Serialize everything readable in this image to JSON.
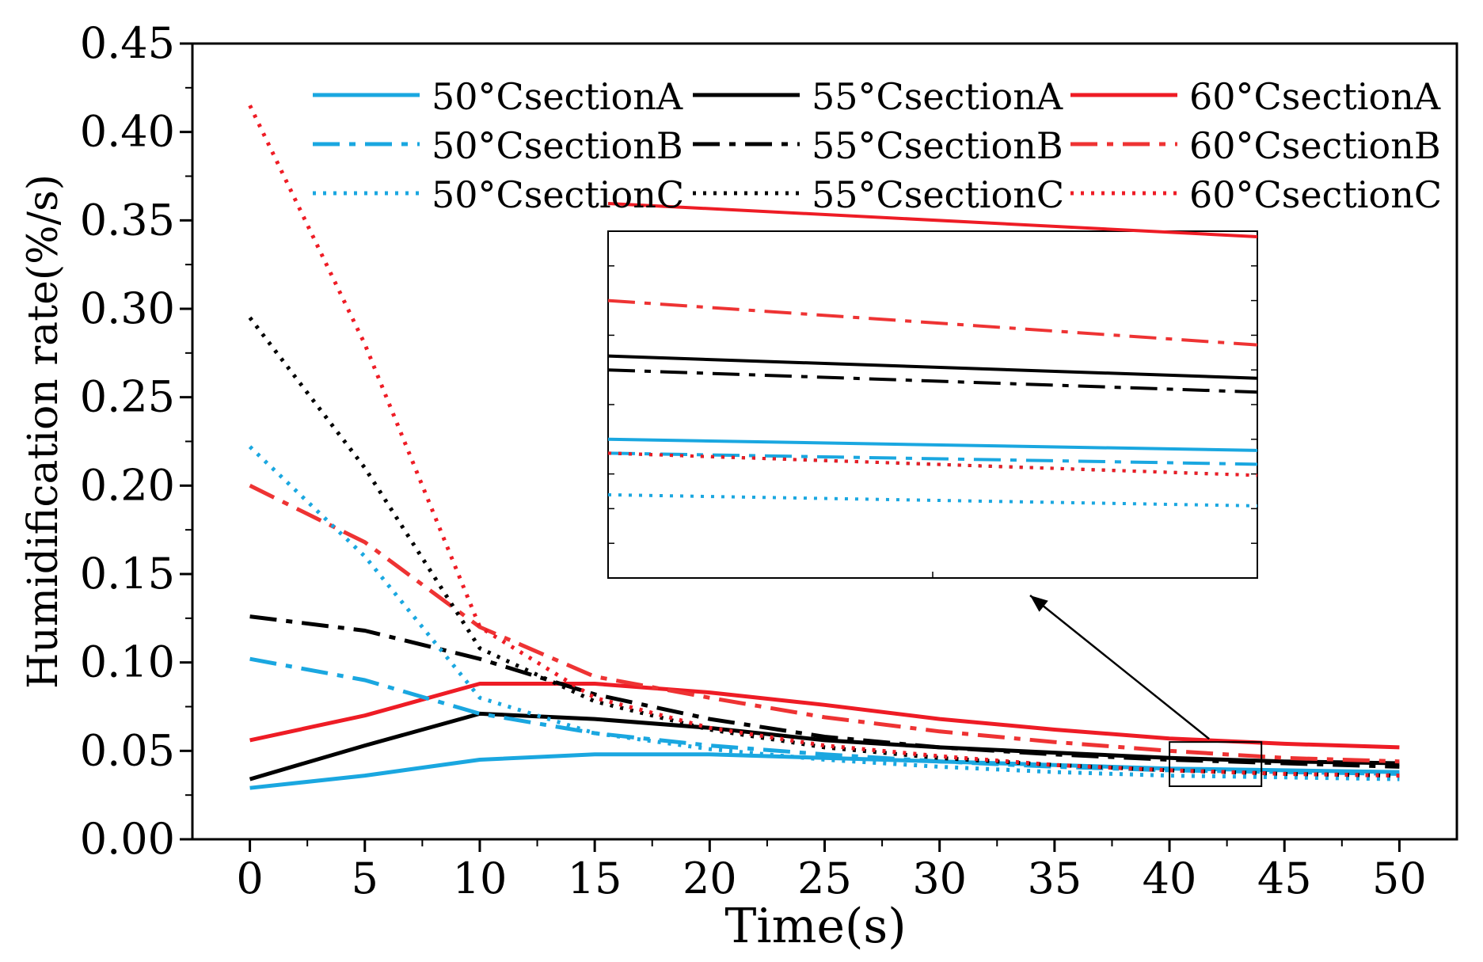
{
  "chart_data": {
    "type": "line",
    "title": "",
    "xlabel": "Time(s)",
    "ylabel": "Humidification rate(%/s)",
    "xlim": [
      -2.5,
      52.5
    ],
    "ylim": [
      0,
      0.45
    ],
    "xticks": [
      0,
      5,
      10,
      15,
      20,
      25,
      30,
      35,
      40,
      45,
      50
    ],
    "xtick_labels": [
      "0",
      "5",
      "10",
      "15",
      "20",
      "25",
      "30",
      "35",
      "40",
      "45",
      "50"
    ],
    "yticks": [
      0,
      0.05,
      0.1,
      0.15,
      0.2,
      0.25,
      0.3,
      0.35,
      0.4,
      0.45
    ],
    "ytick_labels": [
      "0.00",
      "0.05",
      "0.10",
      "0.15",
      "0.20",
      "0.25",
      "0.30",
      "0.35",
      "0.40",
      "0.45"
    ],
    "grid": false,
    "legend_position": "top",
    "x": [
      0,
      5,
      10,
      15,
      20,
      25,
      30,
      35,
      40,
      45,
      50
    ],
    "series": [
      {
        "name": "50°CsectionA",
        "color": "#1aa7e0",
        "style": "solid",
        "values": [
          0.029,
          0.036,
          0.045,
          0.048,
          0.048,
          0.046,
          0.044,
          0.042,
          0.04,
          0.039,
          0.038
        ]
      },
      {
        "name": "55°CsectionA",
        "color": "#000000",
        "style": "solid",
        "values": [
          0.034,
          0.053,
          0.071,
          0.068,
          0.063,
          0.056,
          0.052,
          0.049,
          0.046,
          0.044,
          0.043
        ]
      },
      {
        "name": "60°CsectionA",
        "color": "#ee1c25",
        "style": "solid",
        "values": [
          0.056,
          0.07,
          0.088,
          0.088,
          0.083,
          0.076,
          0.068,
          0.062,
          0.057,
          0.054,
          0.052
        ]
      },
      {
        "name": "50°CsectionB",
        "color": "#1aa7e0",
        "style": "dashdot",
        "values": [
          0.102,
          0.09,
          0.071,
          0.06,
          0.053,
          0.048,
          0.044,
          0.041,
          0.039,
          0.038,
          0.037
        ]
      },
      {
        "name": "55°CsectionB",
        "color": "#000000",
        "style": "dashdot",
        "values": [
          0.126,
          0.118,
          0.102,
          0.082,
          0.068,
          0.058,
          0.052,
          0.048,
          0.045,
          0.043,
          0.041
        ]
      },
      {
        "name": "60°CsectionB",
        "color": "#ee3333",
        "style": "dashdot",
        "values": [
          0.2,
          0.168,
          0.12,
          0.092,
          0.08,
          0.069,
          0.061,
          0.055,
          0.05,
          0.046,
          0.044
        ]
      },
      {
        "name": "50°CsectionC",
        "color": "#1aa7e0",
        "style": "dotted",
        "values": [
          0.222,
          0.16,
          0.08,
          0.06,
          0.051,
          0.045,
          0.041,
          0.038,
          0.036,
          0.035,
          0.034
        ]
      },
      {
        "name": "55°CsectionC",
        "color": "#000000",
        "style": "dotted",
        "values": [
          0.295,
          0.21,
          0.108,
          0.078,
          0.062,
          0.052,
          0.046,
          0.042,
          0.039,
          0.037,
          0.036
        ]
      },
      {
        "name": "60°CsectionC",
        "color": "#ee1c25",
        "style": "dotted",
        "values": [
          0.415,
          0.28,
          0.12,
          0.08,
          0.063,
          0.053,
          0.047,
          0.042,
          0.039,
          0.037,
          0.036
        ]
      }
    ],
    "inset": {
      "zoom_region": {
        "x": [
          40,
          44
        ],
        "y": [
          0.03,
          0.055
        ]
      },
      "arrow": true
    }
  }
}
